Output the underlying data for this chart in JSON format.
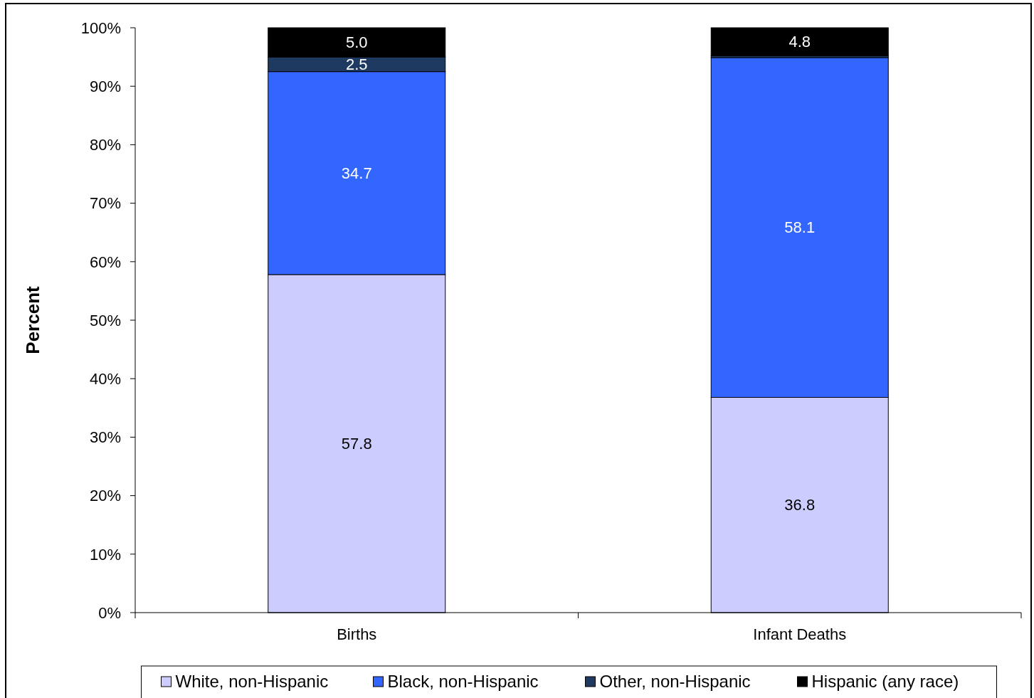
{
  "chart_data": {
    "type": "bar",
    "stacked": true,
    "ylabel": "Percent",
    "categories": [
      "Births",
      "Infant Deaths"
    ],
    "series": [
      {
        "name": "White, non-Hispanic",
        "color": "#ccccff",
        "values": [
          57.8,
          36.8
        ],
        "value_labels": [
          "57.8",
          "36.8"
        ]
      },
      {
        "name": "Black, non-Hispanic",
        "color": "#3366ff",
        "values": [
          34.7,
          58.1
        ],
        "value_labels": [
          "34.7",
          "58.1"
        ]
      },
      {
        "name": "Other, non-Hispanic",
        "color": "#1f3a60",
        "values": [
          2.5,
          0.3
        ],
        "value_labels": [
          "2.5",
          null
        ]
      },
      {
        "name": "Hispanic (any race)",
        "color": "#000000",
        "values": [
          5.0,
          4.8
        ],
        "value_labels": [
          "5.0",
          "4.8"
        ]
      }
    ],
    "ylim": [
      0,
      100
    ],
    "yticks": [
      {
        "value": 0,
        "label": "0%"
      },
      {
        "value": 10,
        "label": "10%"
      },
      {
        "value": 20,
        "label": "20%"
      },
      {
        "value": 30,
        "label": "30%"
      },
      {
        "value": 40,
        "label": "40%"
      },
      {
        "value": 50,
        "label": "50%"
      },
      {
        "value": 60,
        "label": "60%"
      },
      {
        "value": 70,
        "label": "70%"
      },
      {
        "value": 80,
        "label": "80%"
      },
      {
        "value": 90,
        "label": "90%"
      },
      {
        "value": 100,
        "label": "100%"
      }
    ],
    "grid": false,
    "legend": "bottom"
  }
}
